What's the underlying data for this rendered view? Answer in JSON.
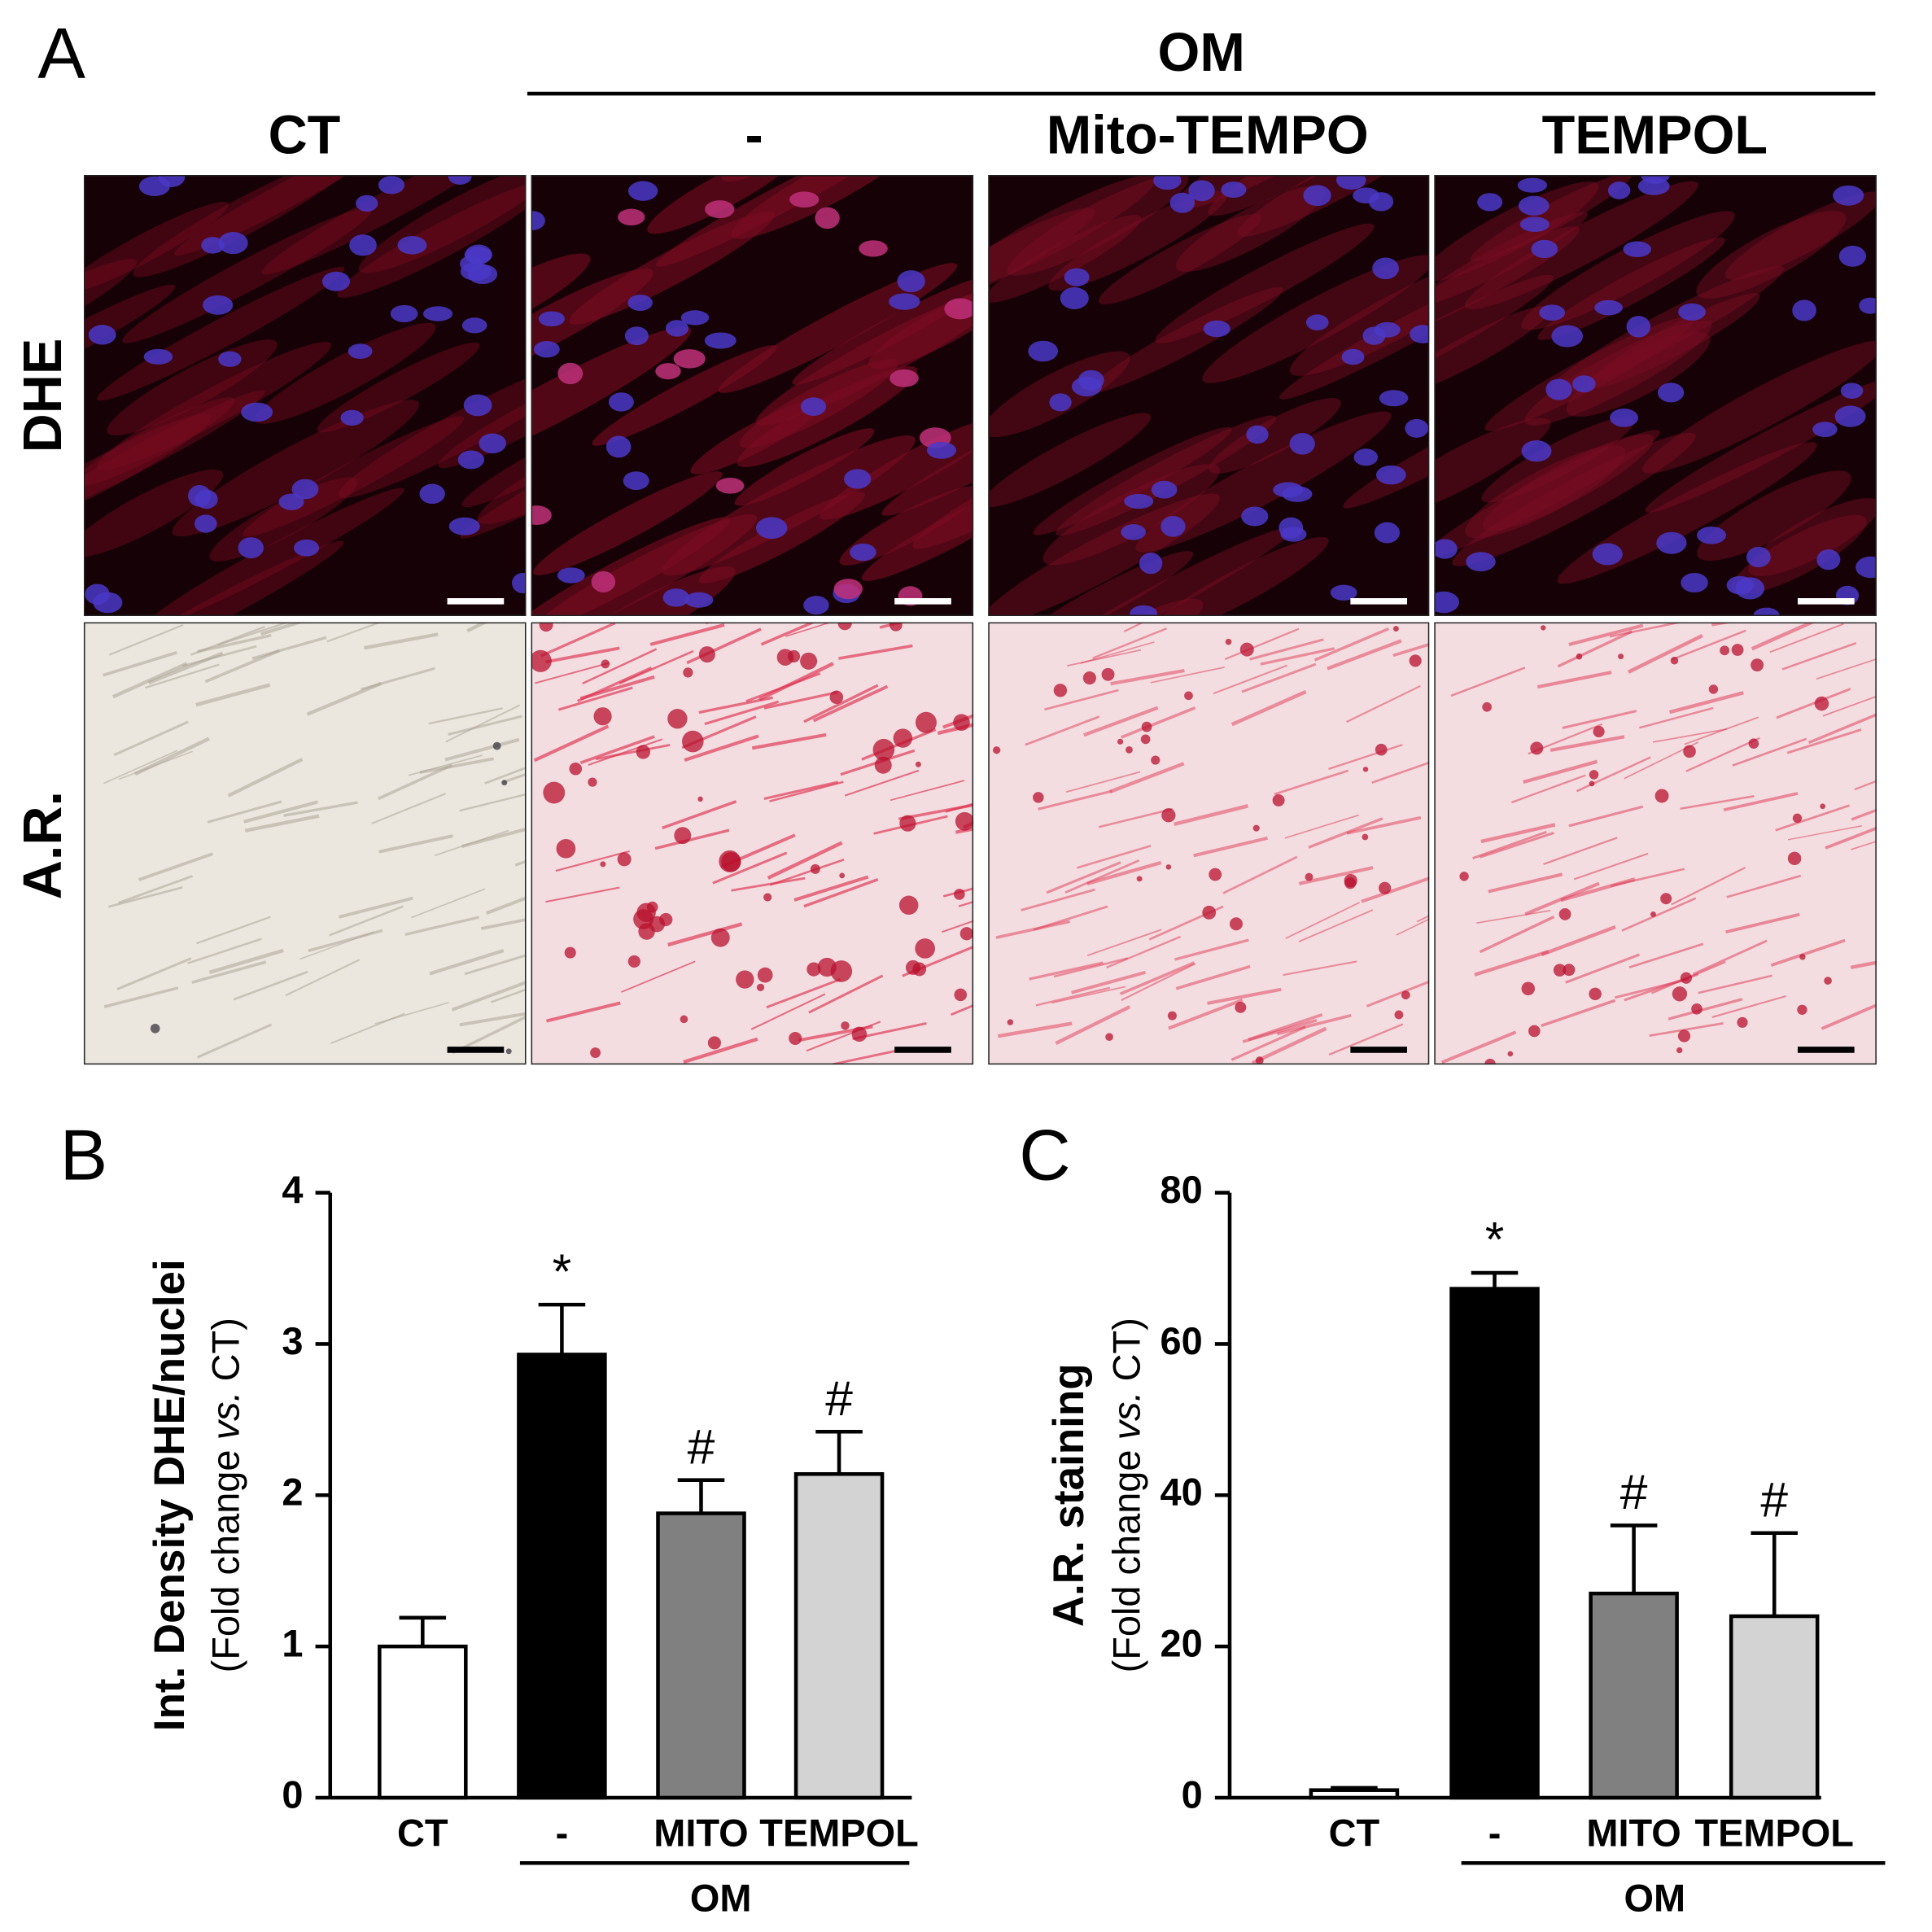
{
  "panel_a": {
    "panel_label": "A",
    "group_label": "OM",
    "columns": [
      "CT",
      "-",
      "Mito-TEMPO",
      "TEMPOL"
    ],
    "rows": [
      "DHE",
      "A.R."
    ]
  },
  "chart_data": [
    {
      "type": "bar",
      "panel_label": "B",
      "ylabel": "Int. Density  DHE/nuclei",
      "ylabel_sub": {
        "before": "(Fold change",
        "italic": "vs.",
        "after": "CT)"
      },
      "categories": [
        "CT",
        "-",
        "MITO",
        "TEMPOL"
      ],
      "group_label": "OM",
      "values": [
        1.0,
        2.93,
        1.88,
        2.14
      ],
      "errors": [
        0.19,
        0.33,
        0.22,
        0.28
      ],
      "annotations": [
        null,
        "*",
        "#",
        "#"
      ],
      "colors": [
        "#ffffff",
        "#000000",
        "#808080",
        "#d3d3d3"
      ],
      "ylim": [
        0,
        4
      ],
      "yticks": [
        0,
        1,
        2,
        3,
        4
      ],
      "grid": false
    },
    {
      "type": "bar",
      "panel_label": "C",
      "ylabel": "A.R. staining",
      "ylabel_sub": {
        "before": "(Fold change",
        "italic": "vs.",
        "after": "CT)"
      },
      "categories": [
        "CT",
        "-",
        "MITO",
        "TEMPOL"
      ],
      "group_label": "OM",
      "values": [
        1.0,
        67.3,
        27.0,
        24.0
      ],
      "errors": [
        0.3,
        2.1,
        9.0,
        11.0
      ],
      "annotations": [
        null,
        "*",
        "#",
        "#"
      ],
      "colors": [
        "#ffffff",
        "#000000",
        "#808080",
        "#d3d3d3"
      ],
      "ylim": [
        0,
        80
      ],
      "yticks": [
        0,
        20,
        40,
        60,
        80
      ],
      "grid": false
    }
  ]
}
